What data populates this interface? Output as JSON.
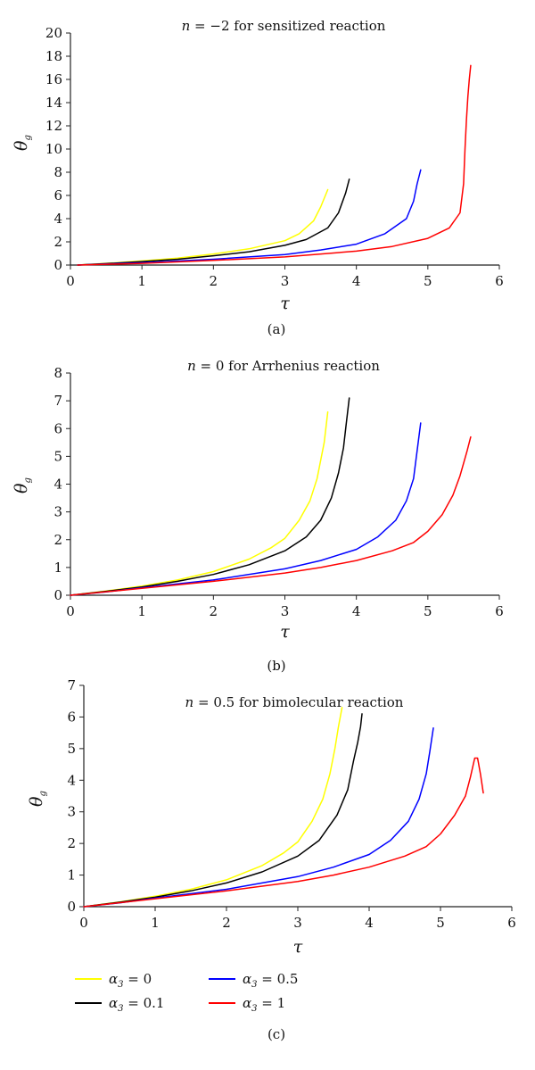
{
  "chart_data": [
    {
      "type": "line",
      "title_parts": {
        "var": "n",
        "rest": " = −2 for sensitized reaction"
      },
      "xlabel": "τ",
      "ylabel": {
        "main": "θ",
        "sub": "g"
      },
      "xlim": [
        0,
        6
      ],
      "ylim": [
        0,
        20
      ],
      "xticks": [
        0,
        1,
        2,
        3,
        4,
        5,
        6
      ],
      "yticks": [
        0,
        2,
        4,
        6,
        8,
        10,
        12,
        14,
        16,
        18,
        20
      ],
      "grid": false,
      "caption": "(a)",
      "series": [
        {
          "key": "a0",
          "color": "#ffff00",
          "x": [
            0.1,
            0.5,
            1,
            1.5,
            2,
            2.5,
            3,
            3.2,
            3.4,
            3.5,
            3.6
          ],
          "y": [
            0,
            0.15,
            0.35,
            0.6,
            0.95,
            1.4,
            2.1,
            2.7,
            3.8,
            5,
            6.5
          ]
        },
        {
          "key": "a01",
          "color": "#000000",
          "x": [
            0.1,
            0.5,
            1,
            1.5,
            2,
            2.5,
            3,
            3.3,
            3.6,
            3.75,
            3.85,
            3.9
          ],
          "y": [
            0,
            0.12,
            0.3,
            0.5,
            0.8,
            1.15,
            1.7,
            2.2,
            3.2,
            4.5,
            6.2,
            7.4
          ]
        },
        {
          "key": "a05",
          "color": "#0000ff",
          "x": [
            0.1,
            1,
            2,
            3,
            3.5,
            4,
            4.4,
            4.7,
            4.8,
            4.85,
            4.9
          ],
          "y": [
            0,
            0.2,
            0.5,
            0.9,
            1.3,
            1.8,
            2.7,
            4,
            5.5,
            7,
            8.2
          ]
        },
        {
          "key": "a1",
          "color": "#ff0000",
          "x": [
            0.1,
            1,
            2,
            3,
            4,
            4.5,
            5,
            5.3,
            5.45,
            5.5,
            5.52,
            5.54,
            5.56,
            5.58,
            5.6
          ],
          "y": [
            0,
            0.15,
            0.4,
            0.7,
            1.2,
            1.6,
            2.3,
            3.2,
            4.5,
            7,
            10,
            12.5,
            14.5,
            16,
            17.2
          ]
        }
      ]
    },
    {
      "type": "line",
      "title_parts": {
        "var": "n",
        "rest": " = 0 for Arrhenius reaction"
      },
      "xlabel": "τ",
      "ylabel": {
        "main": "θ",
        "sub": "g"
      },
      "xlim": [
        0,
        6
      ],
      "ylim": [
        0,
        8
      ],
      "xticks": [
        0,
        1,
        2,
        3,
        4,
        5,
        6
      ],
      "yticks": [
        0,
        1,
        2,
        3,
        4,
        5,
        6,
        7,
        8
      ],
      "grid": false,
      "caption": "(b)",
      "series": [
        {
          "key": "a0",
          "color": "#ffff00",
          "x": [
            0,
            0.5,
            1,
            1.5,
            2,
            2.5,
            2.8,
            3,
            3.2,
            3.35,
            3.45,
            3.55,
            3.6
          ],
          "y": [
            0,
            0.15,
            0.33,
            0.55,
            0.85,
            1.3,
            1.7,
            2.05,
            2.7,
            3.4,
            4.2,
            5.5,
            6.6
          ]
        },
        {
          "key": "a01",
          "color": "#000000",
          "x": [
            0,
            0.5,
            1,
            1.5,
            2,
            2.5,
            3,
            3.3,
            3.5,
            3.65,
            3.75,
            3.82,
            3.86,
            3.9
          ],
          "y": [
            0,
            0.14,
            0.3,
            0.5,
            0.75,
            1.1,
            1.6,
            2.1,
            2.7,
            3.5,
            4.4,
            5.3,
            6.2,
            7.1
          ]
        },
        {
          "key": "a05",
          "color": "#0000ff",
          "x": [
            0,
            0.5,
            1,
            2,
            3,
            3.5,
            4,
            4.3,
            4.55,
            4.7,
            4.8,
            4.85,
            4.9
          ],
          "y": [
            0,
            0.12,
            0.27,
            0.55,
            0.95,
            1.25,
            1.65,
            2.1,
            2.7,
            3.4,
            4.2,
            5.2,
            6.2
          ]
        },
        {
          "key": "a1",
          "color": "#ff0000",
          "x": [
            0,
            1,
            2,
            3,
            3.5,
            4,
            4.5,
            4.8,
            5,
            5.2,
            5.35,
            5.45,
            5.55,
            5.6
          ],
          "y": [
            0,
            0.25,
            0.5,
            0.8,
            1,
            1.25,
            1.6,
            1.9,
            2.3,
            2.9,
            3.6,
            4.3,
            5.2,
            5.7
          ]
        }
      ]
    },
    {
      "type": "line",
      "title_parts": {
        "var": "n",
        "rest": " = 0.5 for bimolecular reaction"
      },
      "xlabel": "τ",
      "ylabel": {
        "main": "θ",
        "sub": "g"
      },
      "xlim": [
        0,
        6
      ],
      "ylim": [
        0,
        7
      ],
      "xticks": [
        0,
        1,
        2,
        3,
        4,
        5,
        6
      ],
      "yticks": [
        0,
        1,
        2,
        3,
        4,
        5,
        6,
        7
      ],
      "grid": false,
      "caption": "(c)",
      "series": [
        {
          "key": "a0",
          "color": "#ffff00",
          "x": [
            0,
            0.5,
            1,
            1.5,
            2,
            2.5,
            2.8,
            3,
            3.2,
            3.35,
            3.45,
            3.52,
            3.57,
            3.62
          ],
          "y": [
            0,
            0.15,
            0.33,
            0.55,
            0.85,
            1.3,
            1.7,
            2.05,
            2.7,
            3.4,
            4.2,
            5,
            5.7,
            6.3
          ]
        },
        {
          "key": "a01",
          "color": "#000000",
          "x": [
            0,
            0.5,
            1,
            1.5,
            2,
            2.5,
            3,
            3.3,
            3.55,
            3.7,
            3.78,
            3.84,
            3.88,
            3.9
          ],
          "y": [
            0,
            0.14,
            0.3,
            0.5,
            0.75,
            1.1,
            1.6,
            2.1,
            2.9,
            3.7,
            4.6,
            5.2,
            5.7,
            6.1
          ]
        },
        {
          "key": "a05",
          "color": "#0000ff",
          "x": [
            0,
            0.5,
            1,
            2,
            3,
            3.5,
            4,
            4.3,
            4.55,
            4.7,
            4.8,
            4.85,
            4.9
          ],
          "y": [
            0,
            0.12,
            0.27,
            0.55,
            0.95,
            1.25,
            1.65,
            2.1,
            2.7,
            3.4,
            4.2,
            4.9,
            5.65
          ]
        },
        {
          "key": "a1",
          "color": "#ff0000",
          "x": [
            0,
            1,
            2,
            3,
            3.5,
            4,
            4.5,
            4.8,
            5,
            5.2,
            5.35,
            5.42,
            5.48,
            5.52,
            5.56,
            5.6
          ],
          "y": [
            0,
            0.25,
            0.5,
            0.8,
            1,
            1.25,
            1.6,
            1.9,
            2.3,
            2.9,
            3.5,
            4.1,
            4.7,
            4.7,
            4.2,
            3.6
          ]
        }
      ]
    }
  ],
  "legend": {
    "items": [
      {
        "key": "a0",
        "var": "α",
        "sub": "3",
        "rest": " = 0",
        "color": "#ffff00"
      },
      {
        "key": "a01",
        "var": "α",
        "sub": "3",
        "rest": " = 0.1",
        "color": "#000000"
      },
      {
        "key": "a05",
        "var": "α",
        "sub": "3",
        "rest": " = 0.5",
        "color": "#0000ff"
      },
      {
        "key": "a1",
        "var": "α",
        "sub": "3",
        "rest": " = 1",
        "color": "#ff0000"
      }
    ]
  }
}
